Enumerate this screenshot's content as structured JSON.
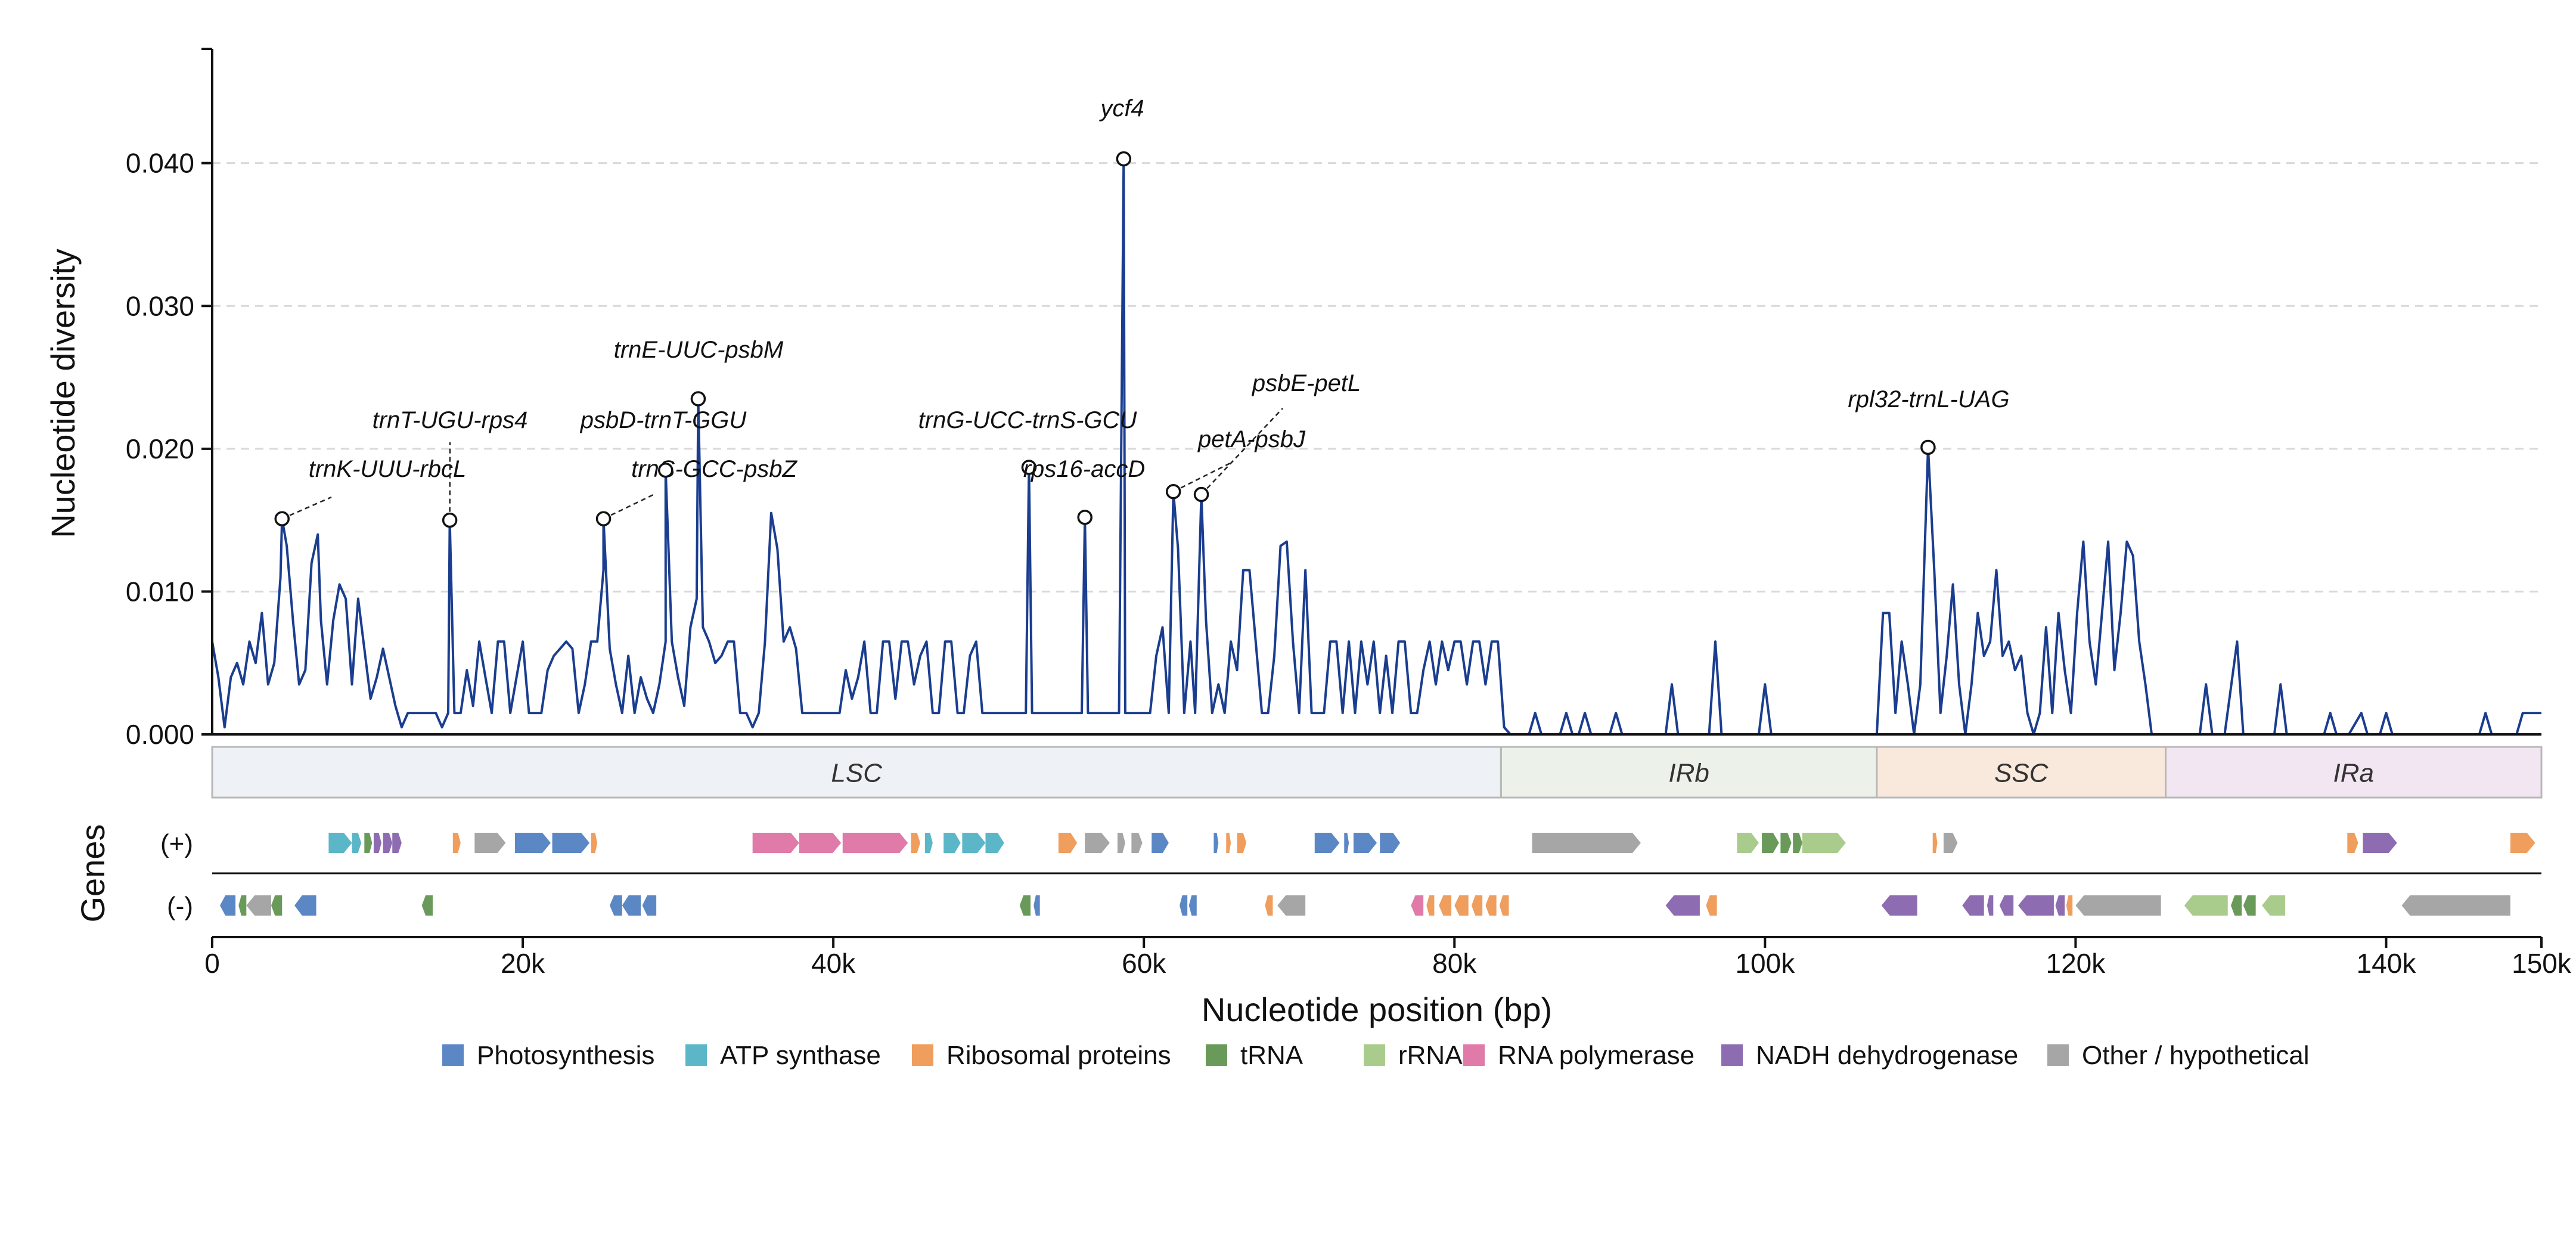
{
  "chart_data": {
    "type": "line",
    "title": "",
    "xlabel": "Nucleotide position (bp)",
    "ylabel": "Nucleotide diversity",
    "xlim": [
      0,
      150000
    ],
    "ylim": [
      0,
      0.048
    ],
    "grid": "dashed horizontal at y ticks",
    "x_ticks": [
      0,
      20000,
      40000,
      60000,
      80000,
      100000,
      120000,
      140000,
      150000
    ],
    "x_tick_labels": [
      "0",
      "20k",
      "40k",
      "60k",
      "80k",
      "100k",
      "120k",
      "140k",
      "150k"
    ],
    "y_ticks": [
      0,
      0.01,
      0.02,
      0.03,
      0.04
    ],
    "y_tick_labels": [
      "0.000",
      "0.010",
      "0.020",
      "0.030",
      "0.040"
    ],
    "line_color": "#1a3d8f",
    "series": [
      {
        "name": "",
        "points": [
          [
            0,
            0.0065
          ],
          [
            400,
            0.004
          ],
          [
            800,
            0.0005
          ],
          [
            1200,
            0.004
          ],
          [
            1600,
            0.005
          ],
          [
            2000,
            0.0035
          ],
          [
            2400,
            0.0065
          ],
          [
            2800,
            0.005
          ],
          [
            3200,
            0.0085
          ],
          [
            3600,
            0.0035
          ],
          [
            4000,
            0.005
          ],
          [
            4400,
            0.011
          ],
          [
            4800,
            0.0132
          ],
          [
            5200,
            0.008
          ],
          [
            5600,
            0.0035
          ],
          [
            6000,
            0.0045
          ],
          [
            6400,
            0.012
          ],
          [
            6800,
            0.014
          ],
          [
            7000,
            0.008
          ],
          [
            7400,
            0.0035
          ],
          [
            7800,
            0.008
          ],
          [
            8200,
            0.0105
          ],
          [
            8600,
            0.0095
          ],
          [
            9000,
            0.0035
          ],
          [
            9400,
            0.0095
          ],
          [
            9800,
            0.006
          ],
          [
            10200,
            0.0025
          ],
          [
            10600,
            0.004
          ],
          [
            11000,
            0.006
          ],
          [
            11400,
            0.004
          ],
          [
            11800,
            0.002
          ],
          [
            12200,
            0.0005
          ],
          [
            12600,
            0.0015
          ],
          [
            13000,
            0.0015
          ],
          [
            13600,
            0.0015
          ],
          [
            14000,
            0.0015
          ],
          [
            14400,
            0.0015
          ],
          [
            14800,
            0.0005
          ],
          [
            15200,
            0.0015
          ],
          [
            15600,
            0.0015
          ],
          [
            16000,
            0.0015
          ],
          [
            16400,
            0.0045
          ],
          [
            16800,
            0.002
          ],
          [
            17200,
            0.0065
          ],
          [
            17600,
            0.004
          ],
          [
            18000,
            0.0015
          ],
          [
            18400,
            0.0065
          ],
          [
            18800,
            0.0065
          ],
          [
            19200,
            0.0015
          ],
          [
            19600,
            0.004
          ],
          [
            20000,
            0.0065
          ],
          [
            20400,
            0.0015
          ],
          [
            20800,
            0.0015
          ],
          [
            21200,
            0.0015
          ],
          [
            21600,
            0.0045
          ],
          [
            22000,
            0.0055
          ],
          [
            22400,
            0.006
          ],
          [
            22800,
            0.0065
          ],
          [
            23200,
            0.006
          ],
          [
            23600,
            0.0015
          ],
          [
            24000,
            0.0035
          ],
          [
            24400,
            0.0065
          ],
          [
            24800,
            0.0065
          ],
          [
            25200,
            0.0115
          ],
          [
            25600,
            0.006
          ],
          [
            26000,
            0.0035
          ],
          [
            26400,
            0.0015
          ],
          [
            26800,
            0.0055
          ],
          [
            27200,
            0.0015
          ],
          [
            27600,
            0.004
          ],
          [
            28000,
            0.0025
          ],
          [
            28400,
            0.0015
          ],
          [
            28800,
            0.0035
          ],
          [
            29200,
            0.0065
          ],
          [
            29600,
            0.0065
          ],
          [
            30000,
            0.004
          ],
          [
            30400,
            0.002
          ],
          [
            30800,
            0.0075
          ],
          [
            31200,
            0.0095
          ],
          [
            31600,
            0.0075
          ],
          [
            32000,
            0.0065
          ],
          [
            32400,
            0.005
          ],
          [
            32800,
            0.0055
          ],
          [
            33200,
            0.0065
          ],
          [
            33600,
            0.0065
          ],
          [
            34000,
            0.0015
          ],
          [
            34400,
            0.0015
          ],
          [
            34800,
            0.0005
          ],
          [
            35200,
            0.0015
          ],
          [
            35600,
            0.0065
          ],
          [
            36000,
            0.0155
          ],
          [
            36400,
            0.013
          ],
          [
            36800,
            0.0065
          ],
          [
            37200,
            0.0075
          ],
          [
            37600,
            0.006
          ],
          [
            38000,
            0.0015
          ],
          [
            38400,
            0.0015
          ],
          [
            38800,
            0.0015
          ],
          [
            39200,
            0.0015
          ],
          [
            39600,
            0.0015
          ],
          [
            40000,
            0.0015
          ],
          [
            40400,
            0.0015
          ],
          [
            40800,
            0.0045
          ],
          [
            41200,
            0.0025
          ],
          [
            41600,
            0.004
          ],
          [
            42000,
            0.0065
          ],
          [
            42400,
            0.0015
          ],
          [
            42800,
            0.0015
          ],
          [
            43200,
            0.0065
          ],
          [
            43600,
            0.0065
          ],
          [
            44000,
            0.0025
          ],
          [
            44400,
            0.0065
          ],
          [
            44800,
            0.0065
          ],
          [
            45200,
            0.0035
          ],
          [
            45600,
            0.0055
          ],
          [
            46000,
            0.0065
          ],
          [
            46400,
            0.0015
          ],
          [
            46800,
            0.0015
          ],
          [
            47200,
            0.0065
          ],
          [
            47600,
            0.0065
          ],
          [
            48000,
            0.0015
          ],
          [
            48400,
            0.0015
          ],
          [
            48800,
            0.0055
          ],
          [
            49200,
            0.0065
          ],
          [
            49600,
            0.0015
          ],
          [
            50000,
            0.0015
          ],
          [
            50400,
            0.0015
          ],
          [
            50800,
            0.0015
          ],
          [
            51200,
            0.0015
          ],
          [
            51600,
            0.0015
          ],
          [
            52000,
            0.0015
          ],
          [
            52400,
            0.0015
          ],
          [
            52800,
            0.0015
          ],
          [
            53200,
            0.0015
          ],
          [
            53600,
            0.0015
          ],
          [
            54000,
            0.0015
          ],
          [
            54400,
            0.0015
          ],
          [
            54800,
            0.0015
          ],
          [
            55200,
            0.0015
          ],
          [
            55600,
            0.0015
          ],
          [
            56000,
            0.0015
          ],
          [
            56400,
            0.0015
          ],
          [
            56800,
            0.0015
          ],
          [
            57200,
            0.0015
          ],
          [
            57600,
            0.0015
          ],
          [
            58000,
            0.0015
          ],
          [
            58400,
            0.0015
          ],
          [
            58800,
            0.0015
          ],
          [
            59200,
            0.0015
          ],
          [
            59600,
            0.0015
          ],
          [
            60000,
            0.0015
          ]
        ]
      }
    ],
    "peaks": [
      {
        "label": "trnK-UUU-rbcL",
        "x": 4500,
        "y": 0.0151
      },
      {
        "label": "trnT-UGU-rps4",
        "x": 15300,
        "y": 0.015
      },
      {
        "label": "trnS-GCC-psbZ",
        "x": 25200,
        "y": 0.0151
      },
      {
        "label": "psbD-trnT-GGU",
        "x": 29200,
        "y": 0.0185
      },
      {
        "label": "trnE-UUC-psbM",
        "x": 31300,
        "y": 0.0235
      },
      {
        "label": "trnG-UCC-trnS-GCU",
        "x": 52600,
        "y": 0.0187
      },
      {
        "label": "rps16-accD",
        "x": 56200,
        "y": 0.0152
      },
      {
        "label": "ycf4",
        "x": 58700,
        "y": 0.0403
      },
      {
        "label": "psbE-petL",
        "x": 63700,
        "y": 0.0168
      },
      {
        "label": "petA-psbJ",
        "x": 61900,
        "y": 0.017
      },
      {
        "label": "rpl32-trnL-UAG",
        "x": 110500,
        "y": 0.0201
      }
    ],
    "regions": [
      {
        "label": "LSC",
        "start": 0,
        "end": 83000,
        "color": "#eef1f5"
      },
      {
        "label": "IRb",
        "start": 83000,
        "end": 107200,
        "color": "#ecf2e9"
      },
      {
        "label": "SSC",
        "start": 107200,
        "end": 125800,
        "color": "#f8e9dc"
      },
      {
        "label": "IRa",
        "start": 125800,
        "end": 150000,
        "color": "#f1e6f1"
      }
    ],
    "gene_track": {
      "title": "Genes",
      "plus_label": "(+)",
      "minus_label": "(-)",
      "plus": [
        [
          7500,
          9000,
          "atp"
        ],
        [
          9000,
          9600,
          "atp"
        ],
        [
          9800,
          10300,
          "trna"
        ],
        [
          10400,
          10900,
          "nadh"
        ],
        [
          11000,
          11600,
          "nadh"
        ],
        [
          11600,
          12200,
          "nadh"
        ],
        [
          15500,
          16000,
          "ribo"
        ],
        [
          16900,
          18900,
          "other"
        ],
        [
          19500,
          21800,
          "photo"
        ],
        [
          21900,
          24300,
          "photo"
        ],
        [
          24400,
          24800,
          "ribo"
        ],
        [
          34800,
          37800,
          "rnap"
        ],
        [
          37800,
          40500,
          "rnap"
        ],
        [
          40600,
          44800,
          "rnap"
        ],
        [
          45000,
          45600,
          "ribo"
        ],
        [
          45900,
          46400,
          "atp"
        ],
        [
          47100,
          48200,
          "atp"
        ],
        [
          48300,
          49800,
          "atp"
        ],
        [
          49800,
          51000,
          "atp"
        ],
        [
          54500,
          55700,
          "ribo"
        ],
        [
          56200,
          57800,
          "other"
        ],
        [
          58300,
          58800,
          "other"
        ],
        [
          59200,
          59900,
          "other"
        ],
        [
          60500,
          61600,
          "photo"
        ],
        [
          64500,
          64800,
          "photo"
        ],
        [
          65300,
          65600,
          "ribo"
        ],
        [
          66000,
          66600,
          "ribo"
        ],
        [
          71000,
          72600,
          "photo"
        ],
        [
          72900,
          73200,
          "photo"
        ],
        [
          73500,
          75000,
          "photo"
        ],
        [
          75200,
          76500,
          "photo"
        ],
        [
          85000,
          92000,
          "other"
        ],
        [
          98200,
          99600,
          "rrna"
        ],
        [
          99800,
          100900,
          "trna"
        ],
        [
          101000,
          101700,
          "trna"
        ],
        [
          101800,
          102400,
          "trna"
        ],
        [
          102400,
          105200,
          "rrna"
        ],
        [
          110800,
          111100,
          "ribo"
        ],
        [
          111500,
          112400,
          "other"
        ],
        [
          137500,
          138200,
          "ribo"
        ],
        [
          138500,
          140700,
          "nadh"
        ],
        [
          148000,
          149600,
          "ribo"
        ]
      ],
      "minus": [
        [
          500,
          1500,
          "photo"
        ],
        [
          1700,
          2200,
          "trna"
        ],
        [
          2200,
          3800,
          "other"
        ],
        [
          3800,
          4500,
          "trna"
        ],
        [
          5300,
          6700,
          "photo"
        ],
        [
          13500,
          14200,
          "trna"
        ],
        [
          25600,
          26400,
          "photo"
        ],
        [
          26400,
          27600,
          "photo"
        ],
        [
          27700,
          28600,
          "photo"
        ],
        [
          52000,
          52700,
          "trna"
        ],
        [
          52900,
          53300,
          "photo"
        ],
        [
          62300,
          62800,
          "photo"
        ],
        [
          62900,
          63400,
          "photo"
        ],
        [
          67800,
          68300,
          "ribo"
        ],
        [
          68600,
          70400,
          "other"
        ],
        [
          77200,
          78000,
          "rnap"
        ],
        [
          78200,
          78700,
          "ribo"
        ],
        [
          79000,
          79800,
          "ribo"
        ],
        [
          80000,
          80900,
          "ribo"
        ],
        [
          81100,
          81800,
          "ribo"
        ],
        [
          82000,
          82700,
          "ribo"
        ],
        [
          82900,
          83500,
          "ribo"
        ],
        [
          93600,
          95800,
          "nadh"
        ],
        [
          96200,
          96900,
          "ribo"
        ],
        [
          107500,
          109800,
          "nadh"
        ],
        [
          112700,
          114100,
          "nadh"
        ],
        [
          114300,
          114700,
          "nadh"
        ],
        [
          115100,
          116000,
          "nadh"
        ],
        [
          116300,
          118600,
          "nadh"
        ],
        [
          118700,
          119300,
          "nadh"
        ],
        [
          119400,
          119800,
          "ribo"
        ],
        [
          120000,
          125500,
          "other"
        ],
        [
          127000,
          129800,
          "rrna"
        ],
        [
          130000,
          130700,
          "trna"
        ],
        [
          130800,
          131600,
          "trna"
        ],
        [
          132000,
          133500,
          "rrna"
        ],
        [
          141000,
          148000,
          "other"
        ]
      ]
    },
    "legend": [
      {
        "key": "photo",
        "label": "Photosynthesis",
        "color": "#5b87c5"
      },
      {
        "key": "atp",
        "label": "ATP synthase",
        "color": "#5bb7c8"
      },
      {
        "key": "ribo",
        "label": "Ribosomal proteins",
        "color": "#ef9e5e"
      },
      {
        "key": "trna",
        "label": "tRNA",
        "color": "#6a9a5a"
      },
      {
        "key": "rrna",
        "label": "rRNA",
        "color": "#a9cc8c"
      },
      {
        "key": "rnap",
        "label": "RNA polymerase",
        "color": "#e07aa8"
      },
      {
        "key": "nadh",
        "label": "NADH dehydrogenase",
        "color": "#8d6cb2"
      },
      {
        "key": "other",
        "label": "Other / hypothetical",
        "color": "#a6a6a6"
      }
    ]
  }
}
